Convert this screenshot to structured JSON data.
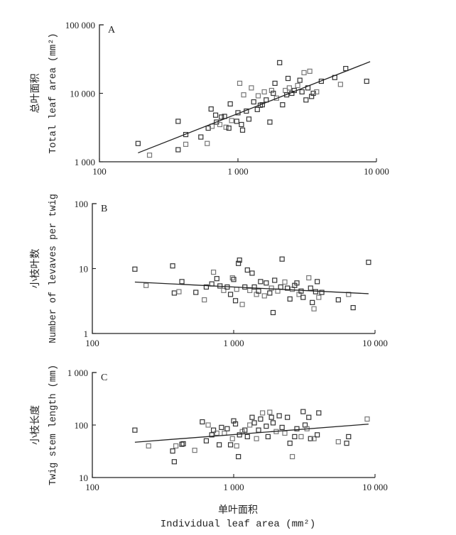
{
  "colors": {
    "axis": "#222222",
    "point_dark": "#333333",
    "point_light": "#777777"
  },
  "x_axis": {
    "label_cn": "单叶面积",
    "label_en": "Individual leaf area (mm²)"
  },
  "chart_data": [
    {
      "type": "scatter",
      "panel": "A",
      "ylabel_cn": "总叶面积",
      "ylabel_en": "Total leaf area (mm²)",
      "xscale": "log",
      "yscale": "log",
      "xlim": [
        100,
        10000
      ],
      "ylim": [
        1000,
        100000
      ],
      "xticks": [
        "100",
        "1 000",
        "10 000"
      ],
      "yticks": [
        "1 000",
        "10 000",
        "100 000"
      ],
      "fit_line": {
        "x": [
          190,
          9000
        ],
        "y": [
          1350,
          29000
        ]
      },
      "points": [
        [
          190,
          1850
        ],
        [
          230,
          1250
        ],
        [
          370,
          3900
        ],
        [
          370,
          1500
        ],
        [
          420,
          1800
        ],
        [
          420,
          2500
        ],
        [
          540,
          2300
        ],
        [
          600,
          1850
        ],
        [
          610,
          3100
        ],
        [
          640,
          5900
        ],
        [
          650,
          3300
        ],
        [
          690,
          4800
        ],
        [
          700,
          3800
        ],
        [
          740,
          3500
        ],
        [
          760,
          4500
        ],
        [
          800,
          4600
        ],
        [
          820,
          3200
        ],
        [
          860,
          3100
        ],
        [
          880,
          7000
        ],
        [
          900,
          4000
        ],
        [
          980,
          3900
        ],
        [
          1000,
          5200
        ],
        [
          1030,
          14000
        ],
        [
          1060,
          3500
        ],
        [
          1080,
          2900
        ],
        [
          1100,
          9500
        ],
        [
          1150,
          5500
        ],
        [
          1200,
          4200
        ],
        [
          1250,
          12000
        ],
        [
          1300,
          7500
        ],
        [
          1380,
          5800
        ],
        [
          1400,
          9200
        ],
        [
          1450,
          6700
        ],
        [
          1500,
          6800
        ],
        [
          1550,
          10500
        ],
        [
          1600,
          8000
        ],
        [
          1700,
          3800
        ],
        [
          1750,
          11000
        ],
        [
          1800,
          10000
        ],
        [
          1850,
          14000
        ],
        [
          1900,
          8500
        ],
        [
          2000,
          28000
        ],
        [
          2100,
          6800
        ],
        [
          2200,
          11000
        ],
        [
          2250,
          9500
        ],
        [
          2300,
          16500
        ],
        [
          2350,
          12000
        ],
        [
          2450,
          10000
        ],
        [
          2550,
          11000
        ],
        [
          2700,
          13000
        ],
        [
          2800,
          15500
        ],
        [
          2900,
          10500
        ],
        [
          3000,
          20000
        ],
        [
          3100,
          8000
        ],
        [
          3200,
          12000
        ],
        [
          3300,
          21000
        ],
        [
          3400,
          9000
        ],
        [
          3500,
          10000
        ],
        [
          3700,
          10500
        ],
        [
          4000,
          15000
        ],
        [
          5000,
          17000
        ],
        [
          5500,
          13500
        ],
        [
          6000,
          23000
        ],
        [
          8500,
          15000
        ]
      ]
    },
    {
      "type": "scatter",
      "panel": "B",
      "ylabel_cn": "小枝叶数",
      "ylabel_en": "Number of levaves per twig",
      "xscale": "log",
      "yscale": "log",
      "xlim": [
        100,
        10000
      ],
      "ylim": [
        1,
        100
      ],
      "xticks": [
        "100",
        "1 000",
        "10 000"
      ],
      "yticks": [
        "1",
        "10",
        "100"
      ],
      "fit_line": {
        "x": [
          200,
          9000
        ],
        "y": [
          6.2,
          4.1
        ]
      },
      "points": [
        [
          200,
          9.8
        ],
        [
          240,
          5.5
        ],
        [
          370,
          11
        ],
        [
          380,
          4.2
        ],
        [
          410,
          4.4
        ],
        [
          430,
          6.3
        ],
        [
          540,
          4.3
        ],
        [
          620,
          3.3
        ],
        [
          640,
          5.2
        ],
        [
          700,
          5.8
        ],
        [
          720,
          8.8
        ],
        [
          760,
          7
        ],
        [
          800,
          5.4
        ],
        [
          850,
          4.6
        ],
        [
          900,
          5.2
        ],
        [
          950,
          4
        ],
        [
          980,
          7.2
        ],
        [
          1000,
          6.8
        ],
        [
          1030,
          3.2
        ],
        [
          1050,
          4.8
        ],
        [
          1080,
          12
        ],
        [
          1100,
          13.5
        ],
        [
          1150,
          2.8
        ],
        [
          1200,
          5.2
        ],
        [
          1250,
          9.5
        ],
        [
          1300,
          4.6
        ],
        [
          1350,
          8.5
        ],
        [
          1400,
          5.2
        ],
        [
          1450,
          4
        ],
        [
          1500,
          4.5
        ],
        [
          1550,
          6.3
        ],
        [
          1650,
          3.8
        ],
        [
          1700,
          6
        ],
        [
          1800,
          4.2
        ],
        [
          1850,
          5
        ],
        [
          1900,
          2.1
        ],
        [
          1950,
          6.6
        ],
        [
          2050,
          4.5
        ],
        [
          2150,
          5.2
        ],
        [
          2200,
          14
        ],
        [
          2300,
          6.2
        ],
        [
          2400,
          5
        ],
        [
          2500,
          3.4
        ],
        [
          2600,
          4.8
        ],
        [
          2700,
          5.5
        ],
        [
          2800,
          6
        ],
        [
          2900,
          4
        ],
        [
          3000,
          4.5
        ],
        [
          3100,
          3.6
        ],
        [
          3400,
          7.2
        ],
        [
          3500,
          5
        ],
        [
          3600,
          3
        ],
        [
          3700,
          2.4
        ],
        [
          3800,
          4.4
        ],
        [
          3900,
          6.3
        ],
        [
          4000,
          3.6
        ],
        [
          4200,
          4.3
        ],
        [
          5500,
          3.3
        ],
        [
          6500,
          4
        ],
        [
          7000,
          2.5
        ],
        [
          9000,
          12.5
        ]
      ]
    },
    {
      "type": "scatter",
      "panel": "C",
      "ylabel_cn": "小枝长度",
      "ylabel_en": "Twig stem length (mm)",
      "xscale": "log",
      "yscale": "log",
      "xlim": [
        100,
        10000
      ],
      "ylim": [
        10,
        1000
      ],
      "xticks": [
        "100",
        "1 000",
        "10 000"
      ],
      "yticks": [
        "10",
        "100",
        "1 000"
      ],
      "fit_line": {
        "x": [
          200,
          9000
        ],
        "y": [
          47,
          104
        ]
      },
      "points": [
        [
          200,
          80
        ],
        [
          250,
          40
        ],
        [
          370,
          32
        ],
        [
          380,
          20
        ],
        [
          390,
          40
        ],
        [
          430,
          43
        ],
        [
          440,
          44
        ],
        [
          530,
          33
        ],
        [
          600,
          115
        ],
        [
          640,
          50
        ],
        [
          660,
          100
        ],
        [
          700,
          65
        ],
        [
          720,
          80
        ],
        [
          760,
          70
        ],
        [
          790,
          42
        ],
        [
          820,
          90
        ],
        [
          860,
          70
        ],
        [
          900,
          85
        ],
        [
          950,
          42
        ],
        [
          980,
          55
        ],
        [
          1000,
          120
        ],
        [
          1030,
          105
        ],
        [
          1050,
          40
        ],
        [
          1080,
          25
        ],
        [
          1100,
          65
        ],
        [
          1150,
          75
        ],
        [
          1200,
          80
        ],
        [
          1250,
          60
        ],
        [
          1300,
          100
        ],
        [
          1350,
          140
        ],
        [
          1400,
          110
        ],
        [
          1450,
          55
        ],
        [
          1500,
          80
        ],
        [
          1550,
          130
        ],
        [
          1600,
          170
        ],
        [
          1700,
          95
        ],
        [
          1750,
          60
        ],
        [
          1800,
          175
        ],
        [
          1850,
          140
        ],
        [
          1900,
          110
        ],
        [
          2000,
          75
        ],
        [
          2100,
          150
        ],
        [
          2200,
          90
        ],
        [
          2300,
          70
        ],
        [
          2400,
          140
        ],
        [
          2500,
          45
        ],
        [
          2600,
          25
        ],
        [
          2700,
          60
        ],
        [
          2800,
          85
        ],
        [
          3000,
          60
        ],
        [
          3100,
          180
        ],
        [
          3200,
          100
        ],
        [
          3300,
          85
        ],
        [
          3400,
          140
        ],
        [
          3500,
          55
        ],
        [
          3700,
          55
        ],
        [
          3900,
          65
        ],
        [
          4000,
          170
        ],
        [
          5500,
          48
        ],
        [
          6300,
          45
        ],
        [
          6500,
          60
        ],
        [
          8800,
          130
        ]
      ]
    }
  ]
}
